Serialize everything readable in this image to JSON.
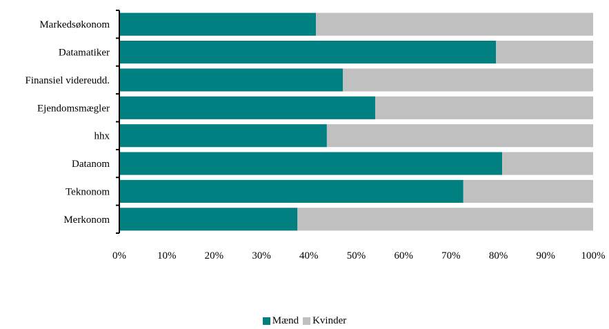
{
  "chart_data": {
    "type": "bar",
    "orientation": "horizontal",
    "stacked": "percent",
    "categories": [
      "Markedsøkonom",
      "Datamatiker",
      "Finansiel videreudd.",
      "Ejendomsmægler",
      "hhx",
      "Datanom",
      "Teknonom",
      "Merkonom"
    ],
    "series": [
      {
        "name": "Mænd",
        "color": "#008080",
        "values": [
          41.5,
          79.5,
          47.2,
          54,
          43.8,
          80.8,
          72.6,
          37.6
        ]
      },
      {
        "name": "Kvinder",
        "color": "#C0C0C0",
        "values": [
          58.5,
          20.5,
          52.8,
          46,
          56.2,
          19.2,
          27.4,
          62.4
        ]
      }
    ],
    "xlim": [
      0,
      100
    ],
    "xticks": [
      "0%",
      "10%",
      "20%",
      "30%",
      "40%",
      "50%",
      "60%",
      "70%",
      "80%",
      "90%",
      "100%"
    ],
    "grid": false,
    "legend_position": "bottom"
  }
}
